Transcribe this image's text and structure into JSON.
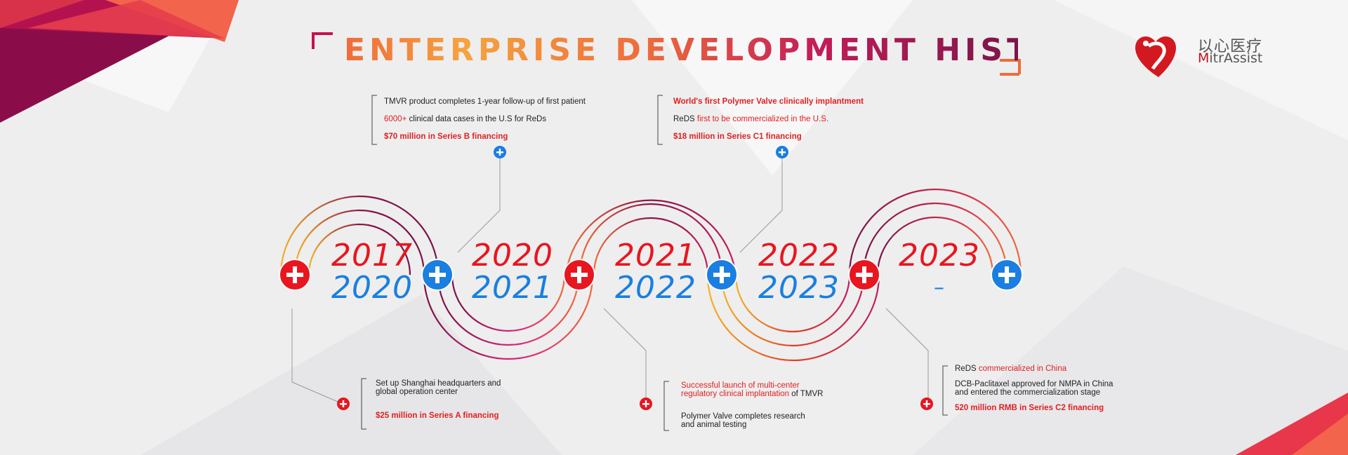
{
  "title": "ENTERPRISE DEVELOPMENT HISTORY",
  "logo": {
    "cn": "以心医疗",
    "en_mark": "M",
    "en_rest": "itrAssist"
  },
  "years": [
    {
      "top": "2017",
      "bottom": "2020"
    },
    {
      "top": "2020",
      "bottom": "2021"
    },
    {
      "top": "2021",
      "bottom": "2022"
    },
    {
      "top": "2022",
      "bottom": "2023"
    },
    {
      "top": "2023",
      "bottom": "–"
    }
  ],
  "notes": {
    "n1": {
      "l1": "TMVR product completes 1-year follow-up of first patient",
      "l2a": "6000+",
      "l2b": " clinical data cases in the U.S for ReDs",
      "l3": "$70 million in Series B financing"
    },
    "n2": {
      "l1": "World's first Polymer Valve clinically implantment",
      "l2a": "ReDS ",
      "l2b": "first to be commercialized in the U.S.",
      "l3": "$18 million in Series C1 financing"
    },
    "n3": {
      "l1": "Set up Shanghai headquarters and",
      "l1b": "global operation center",
      "l2": "$25 million in Series A financing"
    },
    "n4": {
      "l1a": "Successful launch of multi-center",
      "l1b": "regulatory clinical implantation",
      "l1c": " of TMVR",
      "l2": "Polymer Valve completes research",
      "l2b": "and animal testing"
    },
    "n5": {
      "l1a": "ReDS ",
      "l1b": "commercialized in China",
      "l2": "DCB-Paclitaxel approved for NMPA in China",
      "l2b": "and entered the commercialization stage",
      "l3": "520 million RMB in Series C2 financing"
    }
  },
  "colors": {
    "red": "#e8161f",
    "blue": "#1a7fe0",
    "accent": "#c21d58"
  }
}
